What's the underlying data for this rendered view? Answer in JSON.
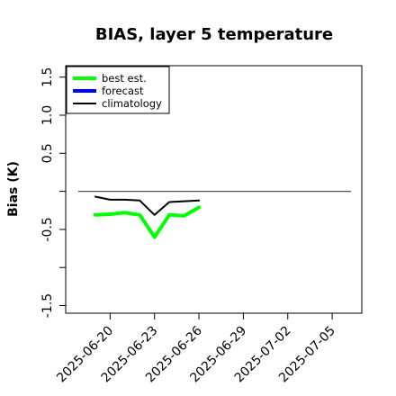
{
  "chart_data": {
    "type": "line",
    "title": "BIAS, layer 5 temperature",
    "xlabel": "",
    "ylabel": "Bias (K)",
    "xlim": [
      "2025-06-17",
      "2025-07-07"
    ],
    "ylim": [
      -1.6,
      1.65
    ],
    "y_ticks": [
      -1.5,
      -1.0,
      -0.5,
      0.0,
      0.5,
      1.0,
      1.5
    ],
    "y_tick_labels": [
      "-1.5",
      "",
      "-0.5",
      "",
      "0.5",
      "1.0",
      "1.5"
    ],
    "x_ticks": [
      "2025-06-20",
      "2025-06-23",
      "2025-06-26",
      "2025-06-29",
      "2025-07-02",
      "2025-07-05"
    ],
    "x_tick_colors": [
      "#000000",
      "#000000",
      "#228B22",
      "#000000",
      "#000000",
      "#000000"
    ],
    "reference_line": {
      "y": 0.0,
      "color": "#555555"
    },
    "legend": {
      "position": "top-left"
    },
    "series": [
      {
        "name": "best est.",
        "color": "#00FF00",
        "x": [
          "2025-06-19",
          "2025-06-20",
          "2025-06-21",
          "2025-06-22",
          "2025-06-23",
          "2025-06-24",
          "2025-06-25",
          "2025-06-26"
        ],
        "values": [
          -0.31,
          -0.3,
          -0.28,
          -0.31,
          -0.6,
          -0.31,
          -0.32,
          -0.21
        ]
      },
      {
        "name": "forecast",
        "color": "#0000FF",
        "x": [],
        "values": []
      },
      {
        "name": "climatology",
        "color": "#000000",
        "x": [
          "2025-06-19",
          "2025-06-20",
          "2025-06-21",
          "2025-06-22",
          "2025-06-23",
          "2025-06-24",
          "2025-06-25",
          "2025-06-26"
        ],
        "values": [
          -0.07,
          -0.11,
          -0.11,
          -0.12,
          -0.31,
          -0.14,
          -0.13,
          -0.12
        ]
      }
    ]
  }
}
